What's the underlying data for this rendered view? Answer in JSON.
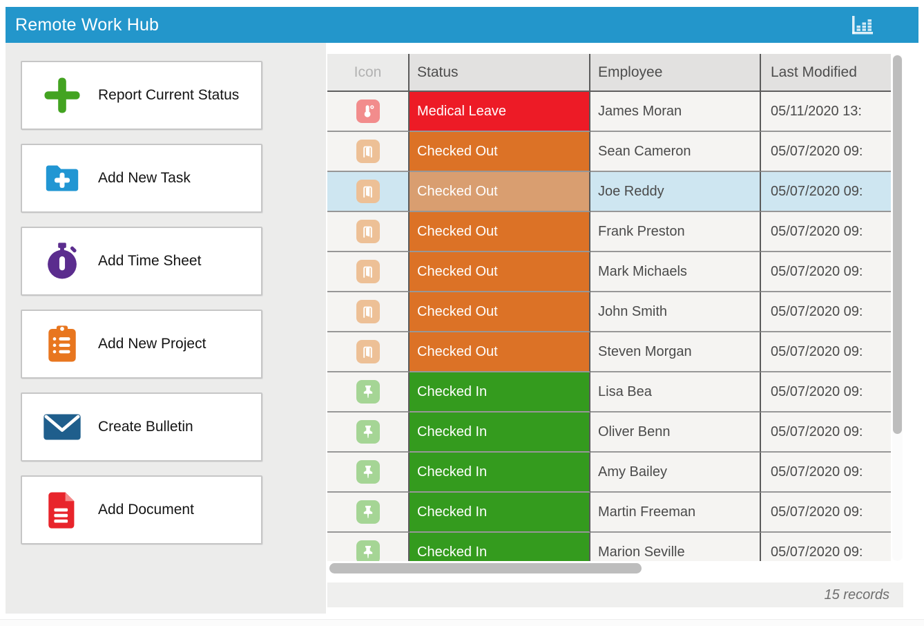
{
  "titlebar": {
    "title": "Remote Work Hub",
    "chart_button_icon": "bar-chart-icon"
  },
  "sidebar": {
    "buttons": [
      {
        "label": "Report Current Status",
        "icon": "plus-icon",
        "icon_color": "#43A321"
      },
      {
        "label": "Add New Task",
        "icon": "folder-plus-icon",
        "icon_color": "#2196D3"
      },
      {
        "label": "Add Time Sheet",
        "icon": "stopwatch-icon",
        "icon_color": "#5B2D8E"
      },
      {
        "label": "Add New Project",
        "icon": "clipboard-list-icon",
        "icon_color": "#E8761F"
      },
      {
        "label": "Create Bulletin",
        "icon": "envelope-icon",
        "icon_color": "#1F5E8C"
      },
      {
        "label": "Add Document",
        "icon": "document-icon",
        "icon_color": "#E8242B"
      }
    ]
  },
  "table": {
    "columns": [
      {
        "label": "Icon",
        "muted": true
      },
      {
        "label": "Status",
        "muted": false
      },
      {
        "label": "Employee",
        "muted": false
      },
      {
        "label": "Last Modified",
        "muted": false
      }
    ],
    "status_colors": {
      "Medical Leave": "#ED1B26",
      "Checked Out": "#DC7226",
      "Checked In": "#349B1E"
    },
    "selected_status_color": "#D99E70",
    "selected_row_bg": "#CEE6F1",
    "chip_colors": {
      "thermometer": "#F28C8C",
      "door-exit": "#EDC096",
      "pushpin": "#A5D595"
    },
    "rows": [
      {
        "icon": "thermometer",
        "status": "Medical Leave",
        "employee": "James Moran",
        "last_modified": "05/11/2020 13:",
        "selected": false
      },
      {
        "icon": "door-exit",
        "status": "Checked Out",
        "employee": "Sean Cameron",
        "last_modified": "05/07/2020 09:",
        "selected": false
      },
      {
        "icon": "door-exit",
        "status": "Checked Out",
        "employee": "Joe Reddy",
        "last_modified": "05/07/2020 09:",
        "selected": true
      },
      {
        "icon": "door-exit",
        "status": "Checked Out",
        "employee": "Frank Preston",
        "last_modified": "05/07/2020 09:",
        "selected": false
      },
      {
        "icon": "door-exit",
        "status": "Checked Out",
        "employee": "Mark Michaels",
        "last_modified": "05/07/2020 09:",
        "selected": false
      },
      {
        "icon": "door-exit",
        "status": "Checked Out",
        "employee": "John Smith",
        "last_modified": "05/07/2020 09:",
        "selected": false
      },
      {
        "icon": "door-exit",
        "status": "Checked Out",
        "employee": "Steven Morgan",
        "last_modified": "05/07/2020 09:",
        "selected": false
      },
      {
        "icon": "pushpin",
        "status": "Checked In",
        "employee": "Lisa Bea",
        "last_modified": "05/07/2020 09:",
        "selected": false
      },
      {
        "icon": "pushpin",
        "status": "Checked In",
        "employee": "Oliver Benn",
        "last_modified": "05/07/2020 09:",
        "selected": false
      },
      {
        "icon": "pushpin",
        "status": "Checked In",
        "employee": "Amy Bailey",
        "last_modified": "05/07/2020 09:",
        "selected": false
      },
      {
        "icon": "pushpin",
        "status": "Checked In",
        "employee": "Martin Freeman",
        "last_modified": "05/07/2020 09:",
        "selected": false
      },
      {
        "icon": "pushpin",
        "status": "Checked In",
        "employee": "Marion Seville",
        "last_modified": "05/07/2020 09:",
        "selected": false
      }
    ]
  },
  "footer": {
    "records_label": "15 records"
  },
  "colors": {
    "header_blue": "#2396CB",
    "sidebar_bg": "#ECECEB",
    "cell_bg": "#F5F4F2",
    "thead_bg": "#E2E1E0"
  }
}
